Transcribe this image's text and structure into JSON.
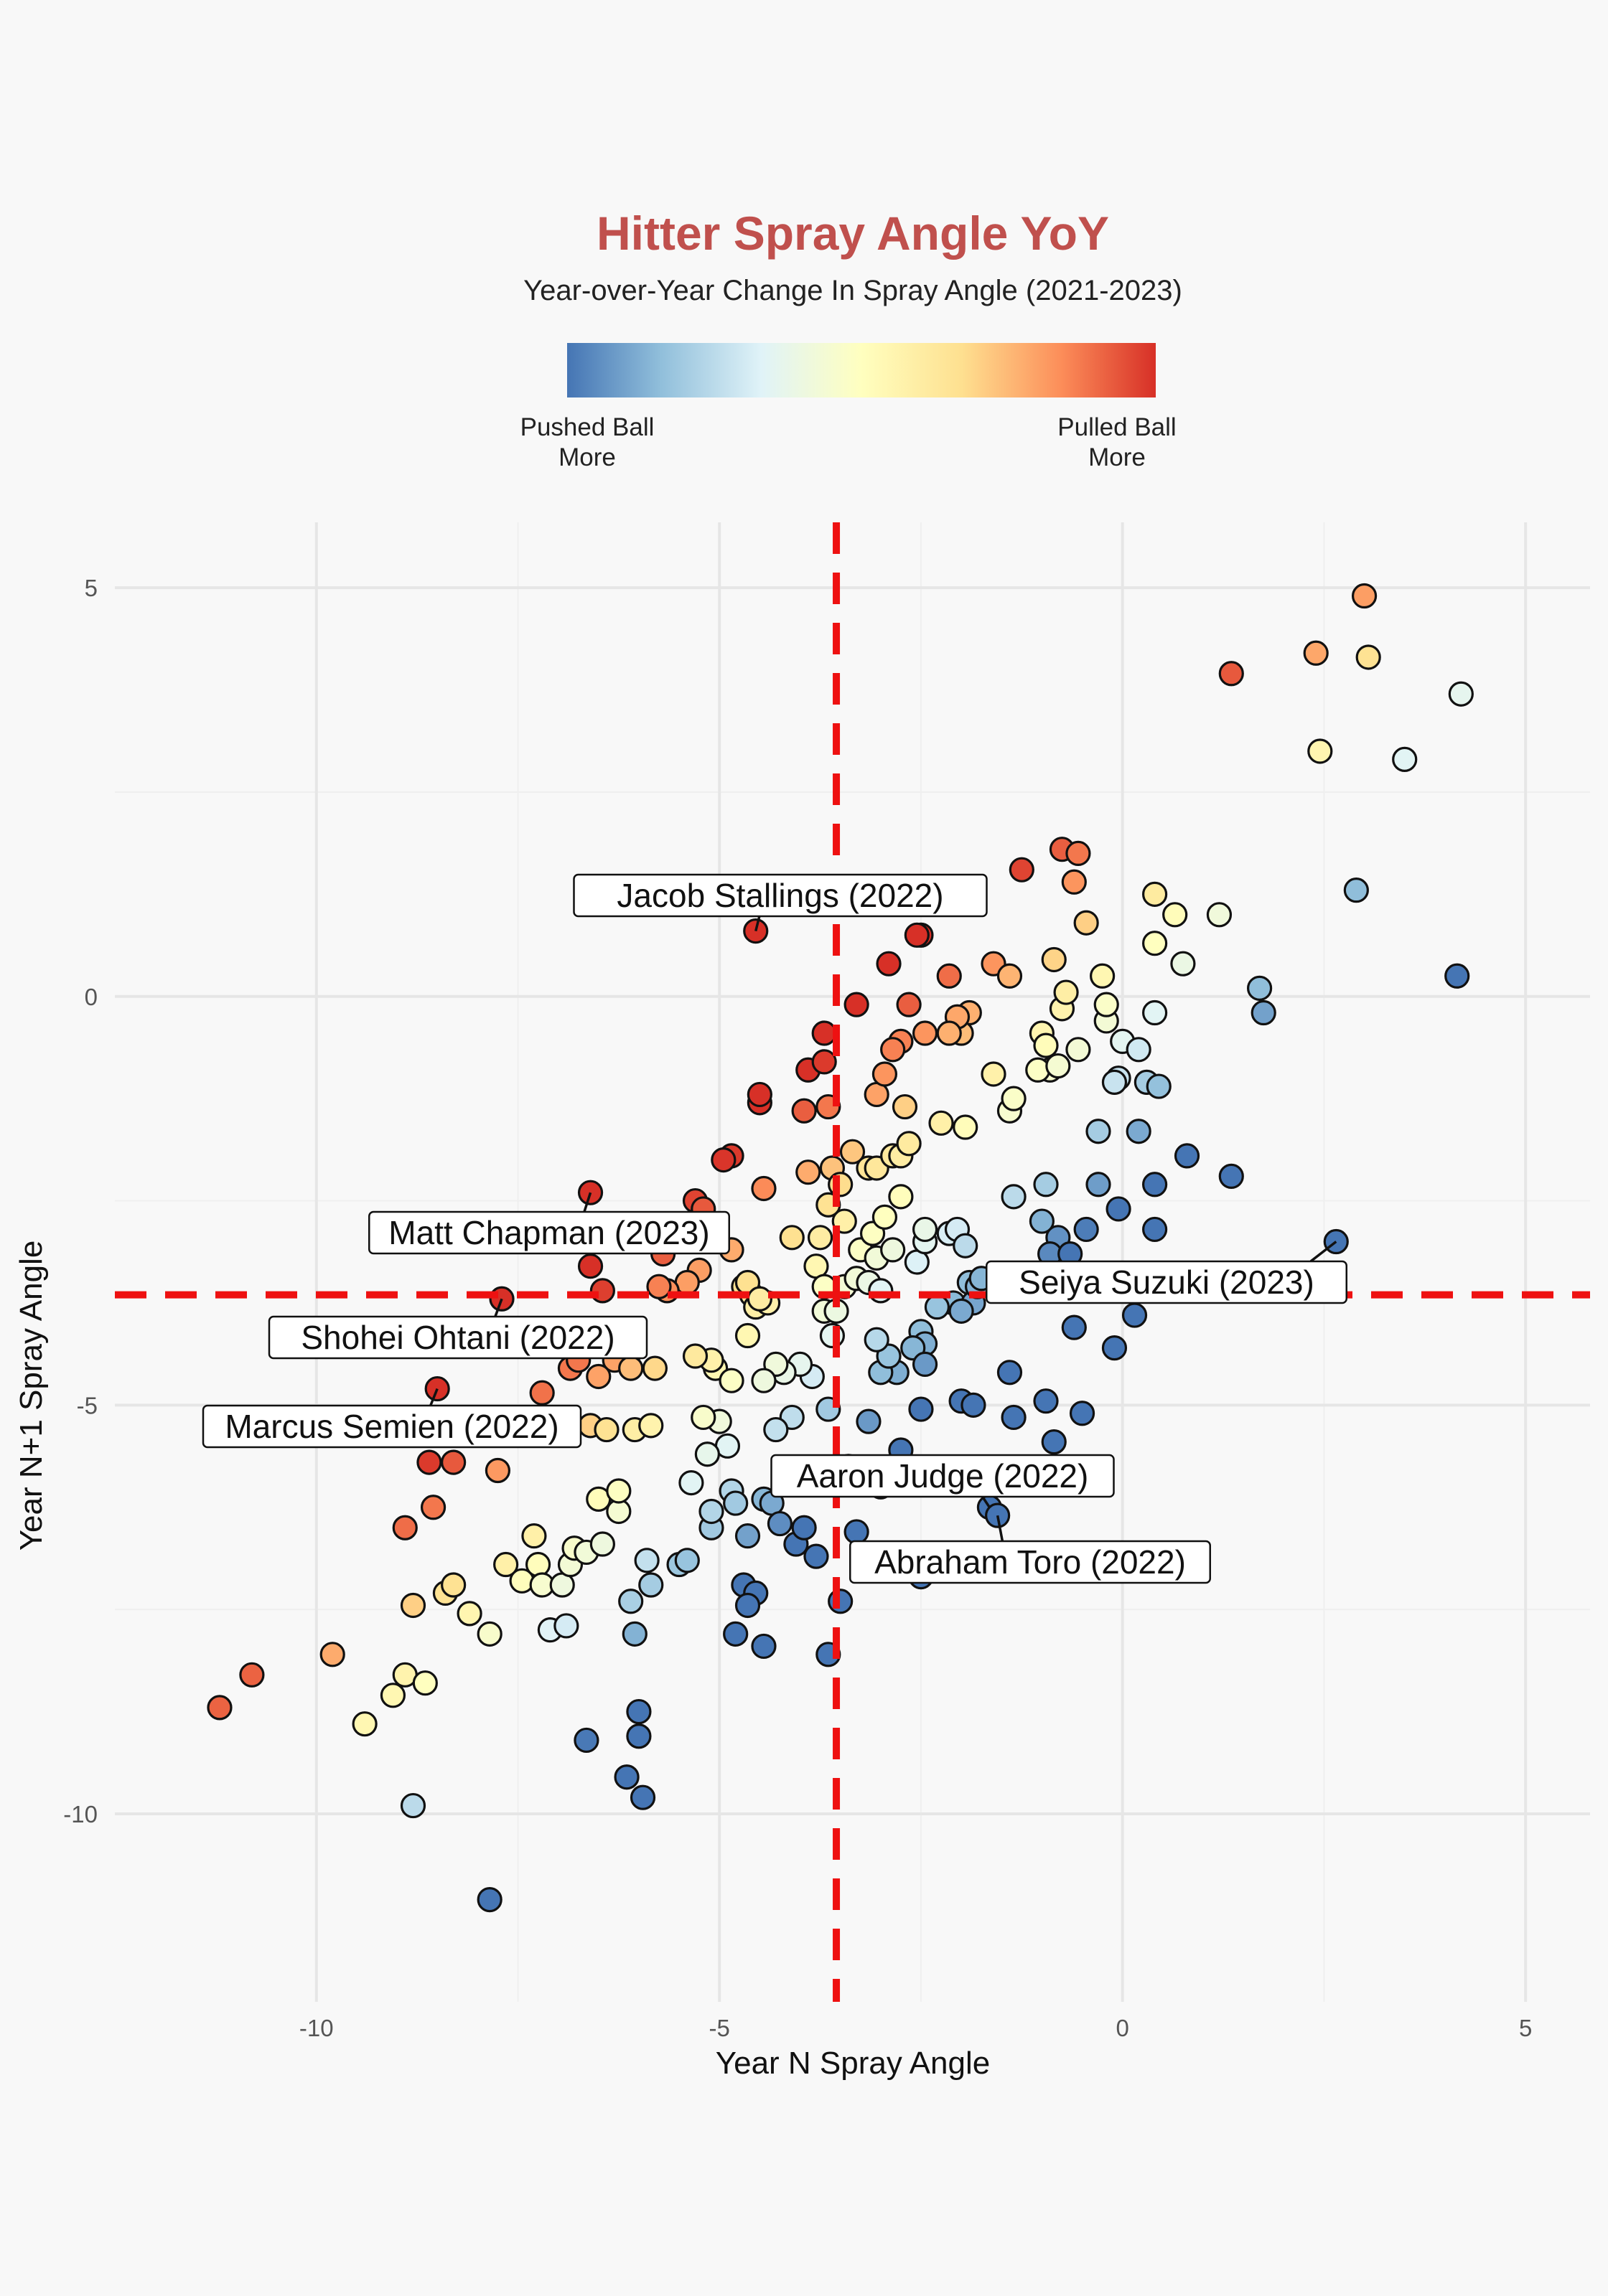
{
  "chart_data": {
    "type": "scatter",
    "title": "Hitter Spray Angle YoY",
    "subtitle": "Year-over-Year Change In Spray Angle (2021-2023)",
    "xlabel": "Year N Spray Angle",
    "ylabel": "Year N+1 Spray Angle",
    "xlim": [
      -12.5,
      5.8
    ],
    "ylim": [
      -12.3,
      5.8
    ],
    "x_ticks": [
      -10,
      -5,
      0,
      5
    ],
    "y_ticks": [
      5,
      0,
      -5,
      -10
    ],
    "grid": true,
    "color_scale": {
      "name": "RdYlBu (reversed)",
      "low_label": "Pushed Ball\nMore",
      "high_label": "Pulled Ball\nMore",
      "stops": [
        "#4575b4",
        "#91bfdb",
        "#e0f3f8",
        "#ffffbf",
        "#fee090",
        "#fc8d59",
        "#d73027"
      ]
    },
    "reference_lines": {
      "x": -3.55,
      "y": -3.65,
      "color": "#ee1111"
    },
    "points": [
      [
        -11.2,
        -8.7
      ],
      [
        -10.8,
        -8.3
      ],
      [
        -9.8,
        -8.05
      ],
      [
        -9.4,
        -8.9
      ],
      [
        -9.05,
        -8.55
      ],
      [
        -8.9,
        -8.3
      ],
      [
        -8.8,
        -9.9
      ],
      [
        -8.65,
        -8.4
      ],
      [
        -8.8,
        -7.45
      ],
      [
        -8.9,
        -6.5
      ],
      [
        -8.4,
        -7.3
      ],
      [
        -8.3,
        -7.2
      ],
      [
        -8.1,
        -7.55
      ],
      [
        -7.85,
        -7.8
      ],
      [
        -7.65,
        -6.95
      ],
      [
        -7.45,
        -7.15
      ],
      [
        -7.3,
        -6.6
      ],
      [
        -7.25,
        -6.95
      ],
      [
        -7.1,
        -7.75
      ],
      [
        -7.2,
        -7.2
      ],
      [
        -6.95,
        -7.2
      ],
      [
        -6.85,
        -6.95
      ],
      [
        -6.9,
        -7.7
      ],
      [
        -6.8,
        -6.75
      ],
      [
        -6.65,
        -6.8
      ],
      [
        -6.45,
        -6.7
      ],
      [
        -6.5,
        -6.15
      ],
      [
        -6.25,
        -6.3
      ],
      [
        -6.25,
        -6.05
      ],
      [
        -6.1,
        -7.4
      ],
      [
        -6.05,
        -7.8
      ],
      [
        -5.9,
        -6.9
      ],
      [
        -5.85,
        -7.2
      ],
      [
        -5.5,
        -6.95
      ],
      [
        -5.4,
        -6.9
      ],
      [
        -5.1,
        -6.5
      ],
      [
        -5.1,
        -6.3
      ],
      [
        -4.85,
        -6.05
      ],
      [
        -4.8,
        -6.2
      ],
      [
        -4.7,
        -7.2
      ],
      [
        -4.55,
        -7.3
      ],
      [
        -4.65,
        -7.45
      ],
      [
        -4.45,
        -6.15
      ],
      [
        -4.35,
        -6.2
      ],
      [
        -4.65,
        -6.6
      ],
      [
        -4.25,
        -6.45
      ],
      [
        -4.05,
        -6.7
      ],
      [
        -3.95,
        -6.5
      ],
      [
        -3.8,
        -6.85
      ],
      [
        -3.3,
        -6.55
      ],
      [
        -3.5,
        -7.4
      ],
      [
        -3.65,
        -8.05
      ],
      [
        -4.45,
        -7.95
      ],
      [
        -4.8,
        -7.8
      ],
      [
        -6.0,
        -8.75
      ],
      [
        -6.0,
        -9.05
      ],
      [
        -6.65,
        -9.1
      ],
      [
        -6.15,
        -9.55
      ],
      [
        -5.95,
        -9.8
      ],
      [
        -7.85,
        -11.05
      ],
      [
        -2.5,
        -7.1
      ],
      [
        -2.15,
        -6.95
      ],
      [
        -1.65,
        -6.25
      ],
      [
        -1.55,
        -6.35
      ],
      [
        -3.0,
        -6.0
      ],
      [
        -2.75,
        -5.55
      ],
      [
        -2.5,
        -5.05
      ],
      [
        -2.0,
        -4.95
      ],
      [
        -1.85,
        -5.0
      ],
      [
        -1.4,
        -4.6
      ],
      [
        -1.35,
        -5.15
      ],
      [
        -0.95,
        -4.95
      ],
      [
        -0.85,
        -5.45
      ],
      [
        -0.5,
        -5.1
      ],
      [
        -0.6,
        -4.05
      ],
      [
        -0.1,
        -4.3
      ],
      [
        0.15,
        -3.9
      ],
      [
        -1.9,
        -3.5
      ],
      [
        -2.1,
        -3.75
      ],
      [
        -2.3,
        -3.8
      ],
      [
        -2.5,
        -4.1
      ],
      [
        -2.45,
        -4.25
      ],
      [
        -2.6,
        -4.3
      ],
      [
        -2.45,
        -4.5
      ],
      [
        -2.8,
        -4.6
      ],
      [
        -3.0,
        -4.6
      ],
      [
        -2.9,
        -4.4
      ],
      [
        -3.05,
        -4.2
      ],
      [
        -3.15,
        -5.2
      ],
      [
        -3.4,
        -5.75
      ],
      [
        -3.65,
        -5.05
      ],
      [
        -3.85,
        -4.65
      ],
      [
        -4.0,
        -4.5
      ],
      [
        -4.2,
        -4.6
      ],
      [
        -4.3,
        -4.5
      ],
      [
        -4.45,
        -4.7
      ],
      [
        -4.1,
        -5.15
      ],
      [
        -4.3,
        -5.3
      ],
      [
        -4.2,
        -5.9
      ],
      [
        -4.9,
        -5.5
      ],
      [
        -5.0,
        -5.2
      ],
      [
        -5.2,
        -5.15
      ],
      [
        -5.15,
        -5.6
      ],
      [
        -5.35,
        -5.95
      ],
      [
        -5.05,
        -4.55
      ],
      [
        -5.1,
        -4.45
      ],
      [
        -5.3,
        -4.4
      ],
      [
        -4.85,
        -4.7
      ],
      [
        -4.65,
        -4.15
      ],
      [
        -3.7,
        -3.85
      ],
      [
        -3.6,
        -4.15
      ],
      [
        -3.55,
        -3.85
      ],
      [
        -3.45,
        -3.55
      ],
      [
        -3.3,
        -3.45
      ],
      [
        -3.15,
        -3.5
      ],
      [
        -3.0,
        -3.6
      ],
      [
        -3.25,
        -3.1
      ],
      [
        -3.1,
        -2.9
      ],
      [
        -3.05,
        -3.2
      ],
      [
        -2.95,
        -2.7
      ],
      [
        -2.85,
        -3.1
      ],
      [
        -2.55,
        -3.25
      ],
      [
        -2.45,
        -3.0
      ],
      [
        -2.45,
        -2.85
      ],
      [
        -2.15,
        -2.9
      ],
      [
        -2.05,
        -2.85
      ],
      [
        -1.95,
        -3.05
      ],
      [
        -1.85,
        -3.75
      ],
      [
        -2.0,
        -3.85
      ],
      [
        -1.8,
        -3.55
      ],
      [
        -1.75,
        -3.45
      ],
      [
        -3.45,
        -2.75
      ],
      [
        -3.65,
        -2.55
      ],
      [
        -3.75,
        -2.95
      ],
      [
        -3.8,
        -3.3
      ],
      [
        -3.7,
        -3.55
      ],
      [
        -4.1,
        -2.95
      ],
      [
        -3.9,
        -2.15
      ],
      [
        -3.6,
        -2.1
      ],
      [
        -3.5,
        -2.3
      ],
      [
        -3.35,
        -1.9
      ],
      [
        -3.15,
        -2.1
      ],
      [
        -3.05,
        -2.1
      ],
      [
        -2.75,
        -2.45
      ],
      [
        -2.85,
        -1.95
      ],
      [
        -2.75,
        -1.95
      ],
      [
        -2.65,
        -1.8
      ],
      [
        -2.7,
        -1.35
      ],
      [
        -3.05,
        -1.2
      ],
      [
        -2.25,
        -1.55
      ],
      [
        -1.95,
        -1.6
      ],
      [
        -1.35,
        -2.45
      ],
      [
        -0.95,
        -2.3
      ],
      [
        -1.0,
        -2.75
      ],
      [
        -0.8,
        -2.95
      ],
      [
        -0.9,
        -3.15
      ],
      [
        -0.65,
        -3.15
      ],
      [
        -0.45,
        -2.85
      ],
      [
        -0.3,
        -2.3
      ],
      [
        -0.3,
        -1.65
      ],
      [
        -0.05,
        -2.6
      ],
      [
        0.2,
        -1.65
      ],
      [
        0.4,
        -2.3
      ],
      [
        0.4,
        -2.85
      ],
      [
        0.8,
        -1.95
      ],
      [
        1.35,
        -2.2
      ],
      [
        2.65,
        -3.0
      ],
      [
        -1.6,
        -0.95
      ],
      [
        -1.9,
        -0.2
      ],
      [
        -2.0,
        -0.45
      ],
      [
        -2.05,
        -0.25
      ],
      [
        -2.15,
        -0.45
      ],
      [
        -2.15,
        0.25
      ],
      [
        -1.6,
        0.4
      ],
      [
        -1.4,
        0.25
      ],
      [
        -2.45,
        -0.45
      ],
      [
        -2.65,
        -0.1
      ],
      [
        -2.75,
        -0.55
      ],
      [
        -2.85,
        -0.65
      ],
      [
        -2.95,
        -0.95
      ],
      [
        -3.3,
        -0.1
      ],
      [
        -2.5,
        0.75
      ],
      [
        -2.9,
        0.4
      ],
      [
        -2.55,
        0.75
      ],
      [
        -3.7,
        -0.45
      ],
      [
        -3.9,
        -0.9
      ],
      [
        -3.7,
        -0.8
      ],
      [
        -3.95,
        -1.4
      ],
      [
        -3.65,
        -1.35
      ],
      [
        -4.5,
        -1.3
      ],
      [
        -4.5,
        -1.2
      ],
      [
        -4.45,
        -2.35
      ],
      [
        -4.85,
        -1.95
      ],
      [
        -4.95,
        -2.0
      ],
      [
        -5.3,
        -2.5
      ],
      [
        -5.2,
        -2.65
      ],
      [
        -4.85,
        -3.1
      ],
      [
        -4.7,
        -3.55
      ],
      [
        -4.6,
        -3.65
      ],
      [
        -4.65,
        -3.5
      ],
      [
        -4.55,
        -3.8
      ],
      [
        -4.4,
        -3.75
      ],
      [
        -4.5,
        -3.7
      ],
      [
        -5.25,
        -3.35
      ],
      [
        -5.4,
        -3.5
      ],
      [
        -5.65,
        -3.6
      ],
      [
        -5.75,
        -3.55
      ],
      [
        -5.2,
        -2.6
      ],
      [
        -5.7,
        -3.15
      ],
      [
        -1.25,
        1.55
      ],
      [
        -0.75,
        1.8
      ],
      [
        -0.55,
        1.75
      ],
      [
        -0.6,
        1.4
      ],
      [
        -0.45,
        0.9
      ],
      [
        -0.85,
        0.45
      ],
      [
        -1.0,
        -0.45
      ],
      [
        -0.75,
        -0.15
      ],
      [
        -0.7,
        0.05
      ],
      [
        -0.95,
        -0.6
      ],
      [
        -0.9,
        -0.9
      ],
      [
        -1.05,
        -0.9
      ],
      [
        -0.8,
        -0.85
      ],
      [
        -0.55,
        -0.65
      ],
      [
        -0.25,
        0.25
      ],
      [
        -0.2,
        -0.3
      ],
      [
        -0.2,
        -0.1
      ],
      [
        0.0,
        -0.55
      ],
      [
        0.2,
        -0.65
      ],
      [
        0.4,
        -0.2
      ],
      [
        -0.05,
        -1.0
      ],
      [
        -0.1,
        -1.05
      ],
      [
        0.3,
        -1.05
      ],
      [
        0.45,
        -1.1
      ],
      [
        0.4,
        0.65
      ],
      [
        0.4,
        1.25
      ],
      [
        0.65,
        1.0
      ],
      [
        0.75,
        0.4
      ],
      [
        1.2,
        1.0
      ],
      [
        1.7,
        0.1
      ],
      [
        1.75,
        -0.2
      ],
      [
        1.35,
        3.95
      ],
      [
        2.4,
        4.2
      ],
      [
        2.45,
        3.0
      ],
      [
        3.0,
        4.9
      ],
      [
        3.05,
        4.15
      ],
      [
        2.9,
        1.3
      ],
      [
        3.5,
        2.9
      ],
      [
        4.2,
        3.7
      ],
      [
        4.15,
        0.25
      ],
      [
        -1.4,
        -1.4
      ],
      [
        -1.35,
        -1.25
      ],
      [
        -6.6,
        -2.4
      ],
      [
        -6.6,
        -3.3
      ],
      [
        -6.45,
        -3.6
      ],
      [
        -6.85,
        -4.55
      ],
      [
        -6.75,
        -4.45
      ],
      [
        -6.3,
        -4.45
      ],
      [
        -6.05,
        -4.3
      ],
      [
        -6.1,
        -4.55
      ],
      [
        -5.8,
        -4.55
      ],
      [
        -6.5,
        -4.65
      ],
      [
        -7.2,
        -4.85
      ],
      [
        -7.7,
        -3.7
      ],
      [
        -8.5,
        -4.8
      ],
      [
        -8.6,
        -5.7
      ],
      [
        -8.3,
        -5.7
      ],
      [
        -8.55,
        -6.25
      ],
      [
        -7.75,
        -5.8
      ],
      [
        -6.6,
        -5.25
      ],
      [
        -6.4,
        -5.3
      ],
      [
        -6.05,
        -5.3
      ],
      [
        -5.85,
        -5.25
      ],
      [
        -4.55,
        0.8
      ]
    ],
    "annotations": [
      {
        "label": "Jacob Stallings (2022)",
        "x": -4.55,
        "y": 0.8
      },
      {
        "label": "Matt Chapman (2023)",
        "x": -6.6,
        "y": -2.4
      },
      {
        "label": "Shohei Ohtani (2022)",
        "x": -7.7,
        "y": -3.7
      },
      {
        "label": "Marcus Semien (2022)",
        "x": -8.5,
        "y": -4.8
      },
      {
        "label": "Seiya Suzuki (2023)",
        "x": 2.65,
        "y": -3.0
      },
      {
        "label": "Aaron Judge (2022)",
        "x": -1.65,
        "y": -6.25
      },
      {
        "label": "Abraham Toro (2022)",
        "x": -1.55,
        "y": -6.35
      }
    ]
  }
}
